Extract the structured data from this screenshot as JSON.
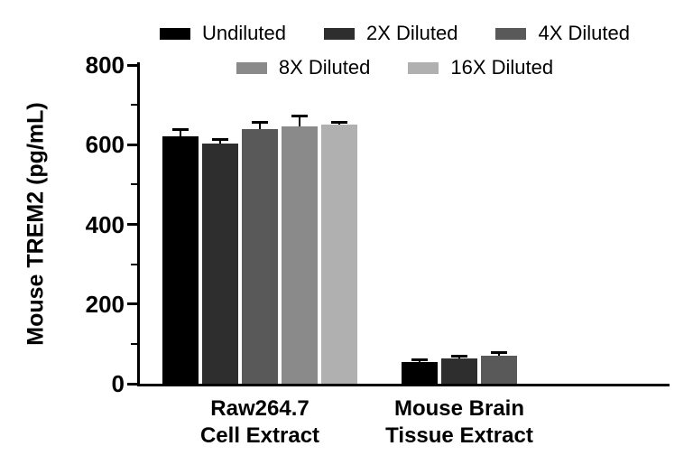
{
  "chart_data": {
    "type": "bar",
    "title": "",
    "ylabel": "Mouse TREM2 (pg/mL)",
    "xlabel": "",
    "ylim": [
      0,
      800
    ],
    "yticks": [
      0,
      200,
      400,
      600,
      800
    ],
    "minor_yticks": [
      100,
      300,
      500,
      700
    ],
    "grid": false,
    "legend_position": "top",
    "categories": [
      [
        "Raw264.7",
        "Cell Extract"
      ],
      [
        "Mouse Brain",
        "Tissue Extract"
      ]
    ],
    "series": [
      {
        "name": "Undiluted",
        "color": "#000000",
        "values": [
          620,
          55
        ],
        "errors": [
          18,
          6
        ]
      },
      {
        "name": "2X Diluted",
        "color": "#2e2e2e",
        "values": [
          603,
          63
        ],
        "errors": [
          9,
          6
        ]
      },
      {
        "name": "4X Diluted",
        "color": "#595959",
        "values": [
          640,
          70
        ],
        "errors": [
          15,
          8
        ]
      },
      {
        "name": "8X Diluted",
        "color": "#8a8a8a",
        "values": [
          645,
          null
        ],
        "errors": [
          28,
          null
        ]
      },
      {
        "name": "16X Diluted",
        "color": "#b0b0b0",
        "values": [
          650,
          null
        ],
        "errors": [
          7,
          null
        ]
      }
    ]
  }
}
